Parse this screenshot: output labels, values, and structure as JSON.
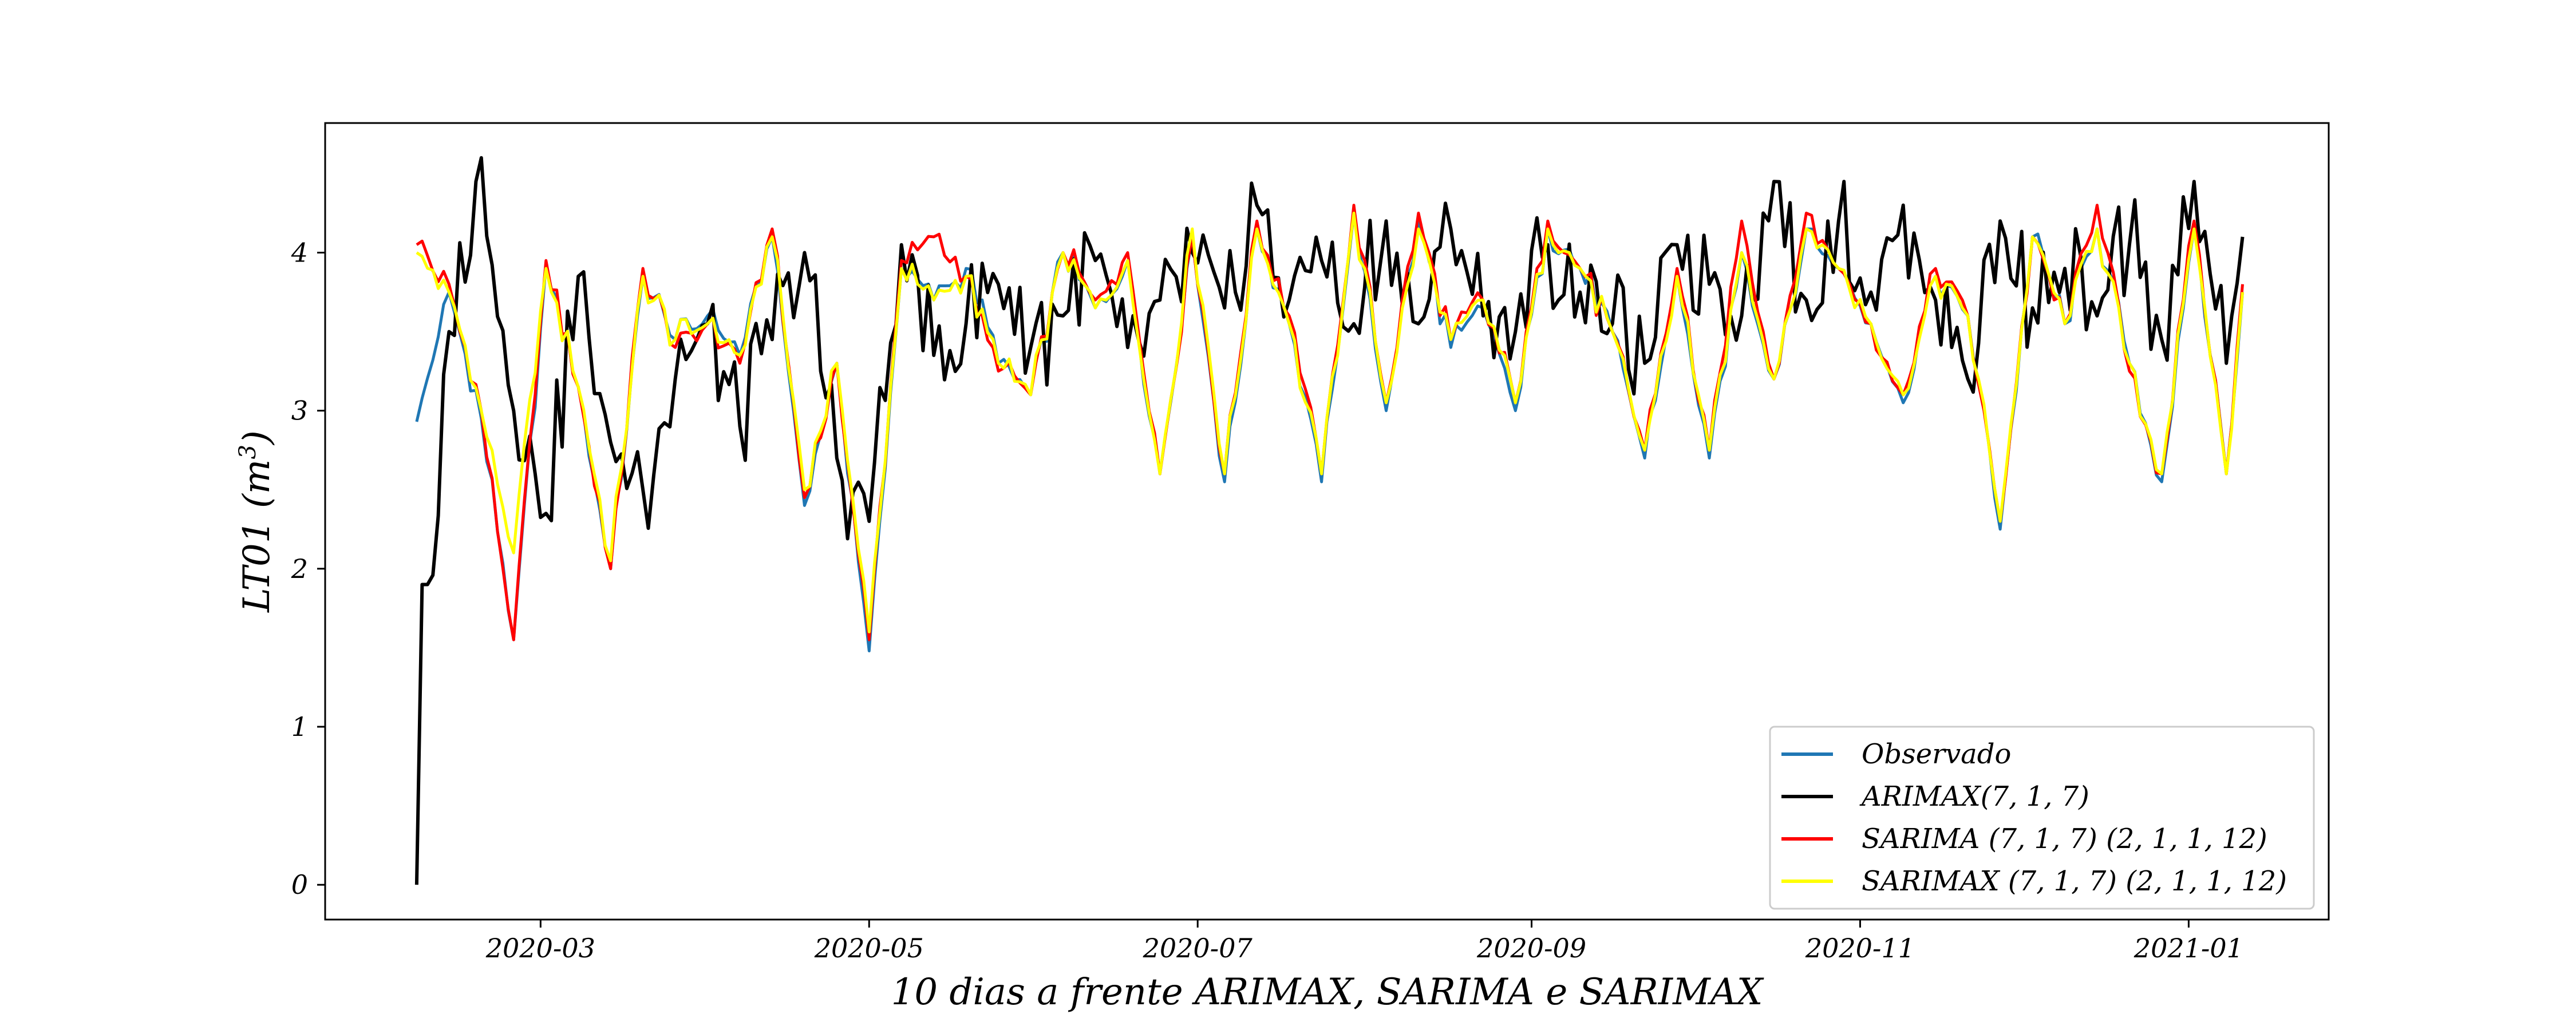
{
  "chart_data": {
    "type": "line",
    "title": "",
    "xlabel": "10 dias a frente ARIMAX, SARIMA e SARIMAX",
    "ylabel_main": "LT01 (m",
    "ylabel_sup": "3",
    "ylabel_close": ")",
    "ylim": [
      -0.22,
      4.82
    ],
    "yticks": [
      0,
      1,
      2,
      3,
      4
    ],
    "ytick_labels": [
      "0",
      "1",
      "2",
      "3",
      "4"
    ],
    "xlim": [
      "2020-01-21",
      "2021-01-27"
    ],
    "xticks": [
      "2020-03-01",
      "2020-05-01",
      "2020-07-01",
      "2020-09-01",
      "2020-11-01",
      "2021-01-01"
    ],
    "xtick_labels": [
      "2020-03",
      "2020-05",
      "2020-07",
      "2020-09",
      "2020-11",
      "2021-01"
    ],
    "legend_position": "lower-right",
    "anchor_dates": [
      "2020-02-07",
      "2020-02-13",
      "2020-02-19",
      "2020-02-25",
      "2020-03-02",
      "2020-03-08",
      "2020-03-14",
      "2020-03-20",
      "2020-03-26",
      "2020-04-01",
      "2020-04-07",
      "2020-04-13",
      "2020-04-19",
      "2020-04-25",
      "2020-05-01",
      "2020-05-07",
      "2020-05-13",
      "2020-05-19",
      "2020-05-25",
      "2020-05-31",
      "2020-06-06",
      "2020-06-12",
      "2020-06-18",
      "2020-06-24",
      "2020-06-30",
      "2020-07-06",
      "2020-07-12",
      "2020-07-18",
      "2020-07-24",
      "2020-07-30",
      "2020-08-05",
      "2020-08-11",
      "2020-08-17",
      "2020-08-23",
      "2020-08-29",
      "2020-09-04",
      "2020-09-10",
      "2020-09-16",
      "2020-09-22",
      "2020-09-28",
      "2020-10-04",
      "2020-10-10",
      "2020-10-16",
      "2020-10-22",
      "2020-10-28",
      "2020-11-03",
      "2020-11-09",
      "2020-11-15",
      "2020-11-21",
      "2020-11-27",
      "2020-12-03",
      "2020-12-09",
      "2020-12-15",
      "2020-12-21",
      "2020-12-27",
      "2021-01-02",
      "2021-01-08",
      "2021-01-11"
    ],
    "series": [
      {
        "name": "Observado",
        "color": "#1f77b4",
        "values": [
          2.93,
          3.75,
          2.95,
          1.55,
          3.92,
          3.15,
          2.0,
          3.85,
          3.45,
          3.6,
          3.35,
          4.1,
          2.4,
          3.3,
          1.48,
          3.9,
          3.7,
          3.9,
          3.3,
          3.1,
          4.0,
          3.65,
          3.95,
          2.6,
          4.1,
          2.55,
          4.15,
          3.55,
          2.55,
          4.25,
          3.0,
          4.2,
          3.4,
          3.65,
          3.0,
          4.15,
          3.9,
          3.5,
          2.7,
          3.85,
          2.7,
          4.0,
          3.2,
          4.15,
          3.9,
          3.55,
          3.05,
          3.85,
          3.6,
          2.25,
          4.1,
          3.55,
          4.15,
          3.3,
          2.55,
          4.15,
          2.6,
          3.75
        ]
      },
      {
        "name": "ARIMAX(7, 1, 7)",
        "color": "#000000",
        "values": [
          0.0,
          3.5,
          4.6,
          3.0,
          2.35,
          3.85,
          2.8,
          2.5,
          3.2,
          3.55,
          2.9,
          3.45,
          4.0,
          2.7,
          2.3,
          4.05,
          3.35,
          3.55,
          3.8,
          3.4,
          3.6,
          3.95,
          3.4,
          3.7,
          4.0,
          3.65,
          4.3,
          3.7,
          3.95,
          3.55,
          4.2,
          3.55,
          4.15,
          3.6,
          3.5,
          4.05,
          3.75,
          3.55,
          3.3,
          4.05,
          3.8,
          3.6,
          4.45,
          3.7,
          4.2,
          3.75,
          4.3,
          3.7,
          3.2,
          4.2,
          3.65,
          3.9,
          3.6,
          4.05,
          3.45,
          4.45,
          3.3,
          4.1
        ]
      },
      {
        "name": "SARIMA (7, 1, 7) (2, 1, 1, 12)",
        "color": "#ff0000",
        "values": [
          4.05,
          3.8,
          3.0,
          1.55,
          3.95,
          3.15,
          2.0,
          3.9,
          3.4,
          3.55,
          3.3,
          4.15,
          2.45,
          3.3,
          1.55,
          3.95,
          4.1,
          3.85,
          3.25,
          3.1,
          4.0,
          3.7,
          4.0,
          2.6,
          4.1,
          2.6,
          4.2,
          3.6,
          2.6,
          4.3,
          3.05,
          4.25,
          3.45,
          3.7,
          3.05,
          4.2,
          3.9,
          3.5,
          2.75,
          3.9,
          2.75,
          4.2,
          3.2,
          4.25,
          3.9,
          3.55,
          3.1,
          3.9,
          3.6,
          2.3,
          4.1,
          3.55,
          4.3,
          3.25,
          2.6,
          4.2,
          2.6,
          3.8
        ]
      },
      {
        "name": "SARIMAX (7, 1, 7) (2, 1, 1, 12)",
        "color": "#ffff00",
        "values": [
          4.0,
          3.75,
          3.0,
          2.1,
          3.9,
          3.15,
          2.05,
          3.85,
          3.45,
          3.55,
          3.35,
          4.1,
          2.5,
          3.3,
          1.6,
          3.9,
          3.7,
          3.85,
          3.3,
          3.1,
          4.0,
          3.65,
          3.95,
          2.6,
          4.15,
          2.6,
          4.15,
          3.55,
          2.6,
          4.25,
          3.05,
          4.15,
          3.45,
          3.7,
          3.05,
          4.15,
          3.9,
          3.5,
          2.75,
          3.85,
          2.75,
          4.0,
          3.2,
          4.15,
          3.9,
          3.55,
          3.1,
          3.85,
          3.6,
          2.3,
          4.1,
          3.55,
          4.15,
          3.3,
          2.6,
          4.15,
          2.6,
          3.75
        ]
      }
    ]
  }
}
